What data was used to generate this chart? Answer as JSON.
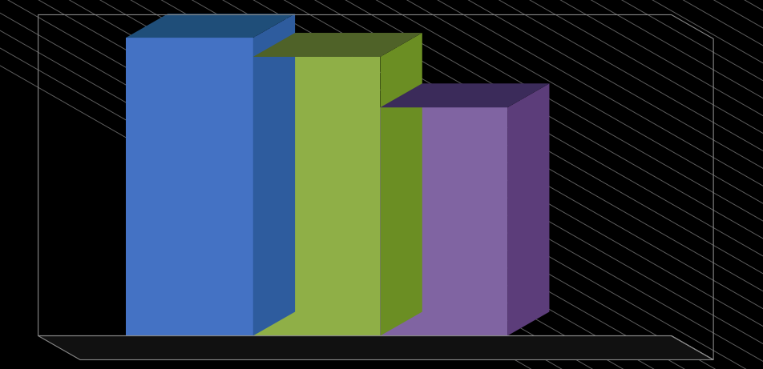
{
  "values": [
    65.0,
    60.83,
    49.79
  ],
  "bar_colors_front": [
    "#4472C4",
    "#8FAF47",
    "#8064A2"
  ],
  "bar_colors_top": [
    "#1F4E79",
    "#4F6228",
    "#3B2B5A"
  ],
  "bar_colors_side": [
    "#2E5C9E",
    "#6B8E23",
    "#5C3D7A"
  ],
  "background_color": "#000000",
  "stripe_color": "#888888",
  "ylim": [
    0,
    70
  ],
  "fig_width": 9.52,
  "fig_height": 4.61
}
